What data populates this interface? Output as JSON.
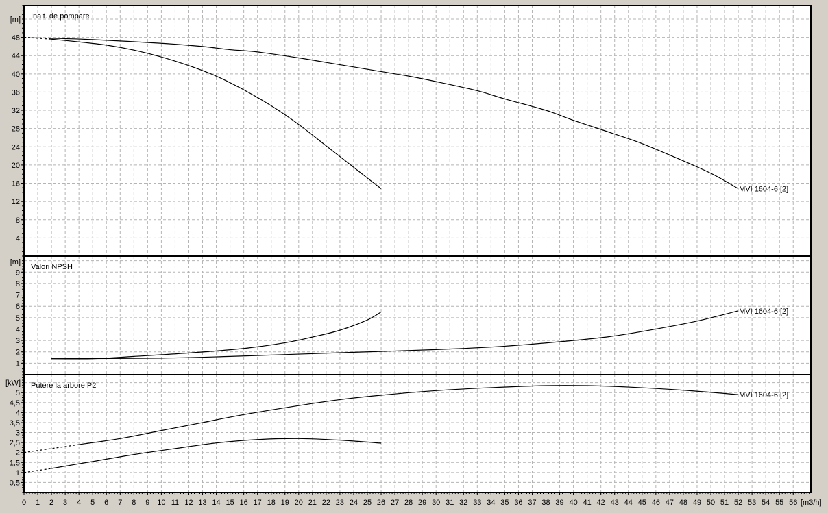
{
  "chart_data": [
    {
      "type": "line",
      "title": "Inalt. de pompare",
      "ylabel": "[m]",
      "ylim": [
        0,
        55
      ],
      "yticks": [
        4,
        8,
        12,
        16,
        20,
        24,
        28,
        32,
        36,
        40,
        44,
        48
      ],
      "grid": true,
      "series": [
        {
          "name": "MVI 1604-6 [2]",
          "extrapolated_until": 2,
          "x": [
            0,
            2,
            5,
            10,
            13,
            15,
            17,
            20,
            22,
            25,
            28,
            30,
            33,
            35,
            38,
            40,
            43,
            45,
            47,
            50,
            52
          ],
          "y": [
            48,
            47.8,
            47.5,
            46.7,
            46,
            45.3,
            44.8,
            43.5,
            42.5,
            41,
            39.5,
            38.3,
            36.3,
            34.5,
            32,
            29.8,
            26.8,
            24.7,
            22.2,
            18.2,
            14.8
          ]
        },
        {
          "extrapolated_until": 2,
          "x": [
            0,
            2,
            4,
            6,
            8,
            10,
            12,
            14,
            16,
            18,
            20,
            22,
            24,
            26
          ],
          "y": [
            48,
            47.6,
            47,
            46.3,
            45.2,
            43.7,
            41.8,
            39.5,
            36.5,
            33,
            28.9,
            24.2,
            19.5,
            14.8
          ]
        }
      ]
    },
    {
      "type": "line",
      "title": "Valori NPSH",
      "ylabel": "[m]",
      "ylim": [
        0,
        10.4
      ],
      "yticks": [
        1,
        2,
        3,
        4,
        5,
        6,
        7,
        8,
        9
      ],
      "grid": true,
      "series": [
        {
          "name": "MVI 1604-6 [2]",
          "x": [
            2,
            10,
            15,
            20,
            25,
            30,
            35,
            40,
            43,
            46,
            49,
            52
          ],
          "y": [
            1.4,
            1.45,
            1.6,
            1.8,
            2.0,
            2.2,
            2.5,
            3.0,
            3.4,
            4.0,
            4.7,
            5.6
          ]
        },
        {
          "x": [
            2,
            5,
            8,
            12,
            16,
            19,
            21,
            23,
            25,
            26
          ],
          "y": [
            1.4,
            1.4,
            1.6,
            1.9,
            2.3,
            2.8,
            3.3,
            3.9,
            4.8,
            5.5
          ]
        }
      ]
    },
    {
      "type": "line",
      "title": "Putere la arbore P2",
      "ylabel": "[kW]",
      "ylim": [
        0,
        5.9
      ],
      "yticks": [
        "0,5",
        "1",
        "1,5",
        "2",
        "2,5",
        "3",
        "3,5",
        "4",
        "4,5",
        "5"
      ],
      "grid": true,
      "series": [
        {
          "name": "MVI 1604-6 [2]",
          "extrapolated_until": 4,
          "x": [
            0,
            4,
            7,
            10,
            13,
            16,
            20,
            23,
            26,
            30,
            34,
            38,
            41,
            44,
            48,
            52
          ],
          "y": [
            2.0,
            2.4,
            2.7,
            3.1,
            3.5,
            3.9,
            4.35,
            4.65,
            4.87,
            5.1,
            5.25,
            5.35,
            5.35,
            5.28,
            5.12,
            4.9
          ]
        },
        {
          "extrapolated_until": 2,
          "x": [
            0,
            2,
            5,
            8,
            11,
            14,
            17,
            20,
            23,
            26
          ],
          "y": [
            1.0,
            1.2,
            1.55,
            1.9,
            2.2,
            2.48,
            2.65,
            2.7,
            2.62,
            2.47
          ]
        }
      ]
    }
  ],
  "x_axis": {
    "label": "[m3/h]",
    "xlim": [
      0,
      57
    ],
    "ticks": [
      0,
      1,
      2,
      3,
      4,
      5,
      6,
      7,
      8,
      9,
      10,
      11,
      12,
      13,
      14,
      15,
      16,
      17,
      18,
      19,
      20,
      21,
      22,
      23,
      24,
      25,
      26,
      27,
      28,
      29,
      30,
      31,
      32,
      33,
      34,
      35,
      36,
      37,
      38,
      39,
      40,
      41,
      42,
      43,
      44,
      45,
      46,
      47,
      48,
      49,
      50,
      51,
      52,
      53,
      54,
      55,
      56
    ]
  },
  "colors": {
    "background": "#d4d0c8",
    "plot": "#ffffff",
    "grid": "#b4b4b4",
    "curve": "#000000"
  }
}
